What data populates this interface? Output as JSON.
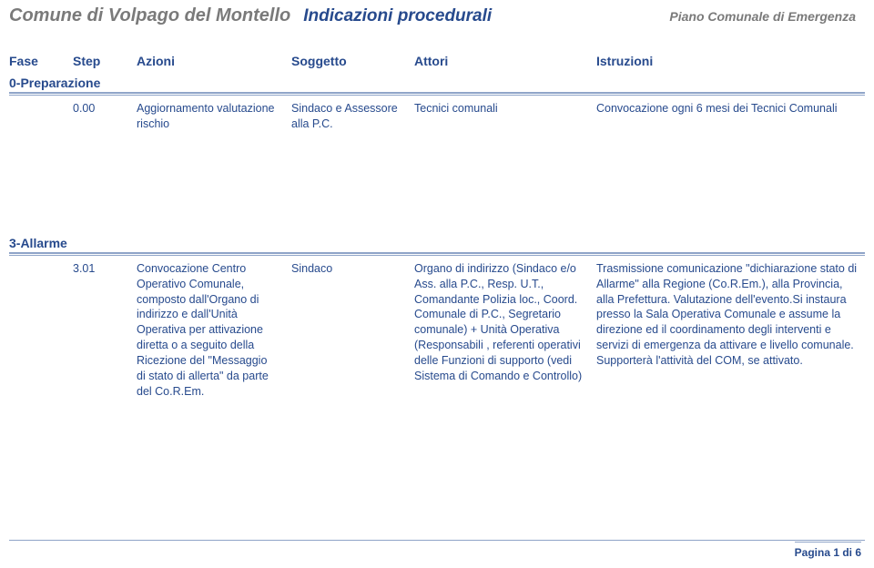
{
  "header": {
    "comune": "Comune di Volpago del Montello",
    "center": "Indicazioni procedurali",
    "right": "Piano Comunale di Emergenza"
  },
  "columns": {
    "fase": "Fase",
    "step": "Step",
    "azioni": "Azioni",
    "soggetto": "Soggetto",
    "attori": "Attori",
    "istruzioni": "Istruzioni"
  },
  "sections": [
    {
      "title": "0-Preparazione",
      "rows": [
        {
          "step": "0.00",
          "azioni": "Aggiornamento valutazione rischio",
          "soggetto": "Sindaco e Assessore alla P.C.",
          "attori": "Tecnici comunali",
          "istruzioni": "Convocazione ogni 6 mesi dei Tecnici Comunali"
        }
      ]
    },
    {
      "title": "3-Allarme",
      "rows": [
        {
          "step": "3.01",
          "azioni": "Convocazione Centro Operativo Comunale, composto dall'Organo di indirizzo e dall'Unità Operativa per attivazione diretta o a seguito della Ricezione del \"Messaggio di stato di allerta\" da parte del Co.R.Em.",
          "soggetto": "Sindaco",
          "attori": "Organo di indirizzo (Sindaco e/o Ass. alla P.C., Resp. U.T., Comandante Polizia loc., Coord. Comunale di P.C., Segretario comunale) + Unità Operativa (Responsabili , referenti operativi delle Funzioni di supporto (vedi Sistema di Comando e Controllo)",
          "istruzioni": "Trasmissione comunicazione \"dichiarazione stato di Allarme\" alla Regione (Co.R.Em.), alla Provincia, alla Prefettura. Valutazione dell'evento.Si instaura presso la Sala Operativa Comunale e assume la direzione ed il coordinamento degli interventi e servizi di emergenza da attivare e livello comunale. Supporterà l'attività del COM, se attivato."
        }
      ]
    }
  ],
  "footer": {
    "page": "Pagina 1 di 6"
  }
}
